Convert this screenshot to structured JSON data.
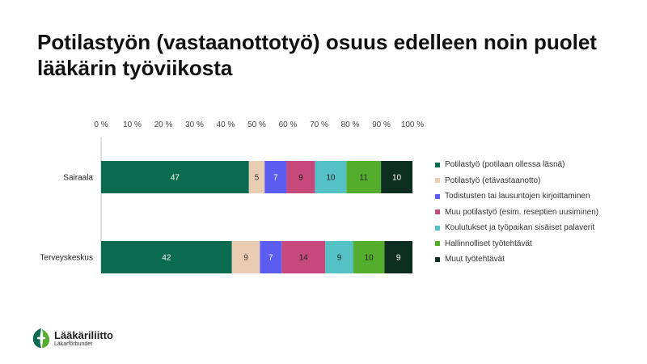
{
  "title": {
    "line1": "Potilastyön (vastaanottotyö) osuus edelleen noin puolet",
    "line2": "lääkärin työviikosta"
  },
  "logo": {
    "name": "Lääkäriliitto",
    "sub": "Läkarförbundet"
  },
  "chart_data": {
    "type": "bar",
    "orientation": "horizontal",
    "stacked": true,
    "percent": true,
    "xlim": [
      0,
      100
    ],
    "x_ticks": [
      "0 %",
      "10 %",
      "20 %",
      "30 %",
      "40 %",
      "50 %",
      "60 %",
      "70 %",
      "80 %",
      "90 %",
      "100 %"
    ],
    "tick_position": "top",
    "legend_position": "right",
    "categories": [
      "Sairaala",
      "Terveyskeskus"
    ],
    "series": [
      {
        "name": "Potilastyö (potilaan ollessa läsnä)",
        "color": "#0b6b50",
        "label_color": "#ffffff",
        "values": [
          47,
          42
        ]
      },
      {
        "name": "Potilastyö (etävastaanotto)",
        "color": "#e9cdb3",
        "label_color": "#333333",
        "values": [
          5,
          9
        ]
      },
      {
        "name": "Todistusten tai lausuntojen kirjoittaminen",
        "color": "#5b5cf0",
        "label_color": "#ffffff",
        "values": [
          7,
          7
        ]
      },
      {
        "name": "Muu potilastyö (esim. reseptien uusiminen)",
        "color": "#c5497a",
        "label_color": "#222222",
        "values": [
          9,
          14
        ]
      },
      {
        "name": "Koulutukset ja työpaikan sisäiset palaverit",
        "color": "#56c1c4",
        "label_color": "#222222",
        "values": [
          10,
          9
        ]
      },
      {
        "name": "Hallinnolliset työtehtävät",
        "color": "#55ad2e",
        "label_color": "#222222",
        "values": [
          11,
          10
        ]
      },
      {
        "name": "Muut työtehtävät",
        "color": "#0e2e22",
        "label_color": "#ffffff",
        "values": [
          10,
          9
        ]
      }
    ]
  }
}
